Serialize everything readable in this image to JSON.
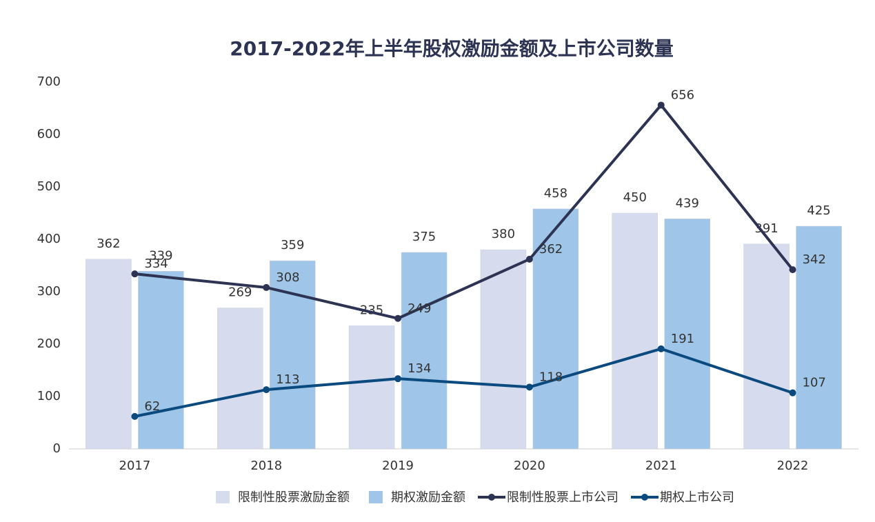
{
  "chart_data": {
    "type": "bar",
    "title": "2017-2022年上半年股权激励金额及上市公司数量",
    "categories": [
      "2017",
      "2018",
      "2019",
      "2020",
      "2021",
      "2022"
    ],
    "series": [
      {
        "name": "限制性股票激励金额",
        "type": "bar",
        "color": "#d6dcee",
        "values": [
          362,
          269,
          235,
          380,
          450,
          391
        ]
      },
      {
        "name": "期权激励金额",
        "type": "bar",
        "color": "#9fc5e8",
        "values": [
          339,
          359,
          375,
          458,
          439,
          425
        ]
      },
      {
        "name": "限制性股票上市公司",
        "type": "line",
        "color": "#2d3352",
        "values": [
          334,
          308,
          249,
          362,
          656,
          342
        ]
      },
      {
        "name": "期权上市公司",
        "type": "line",
        "color": "#0b4a7f",
        "values": [
          62,
          113,
          134,
          118,
          191,
          107
        ]
      }
    ],
    "ylim": [
      0,
      700
    ],
    "yticks": [
      0,
      100,
      200,
      300,
      400,
      500,
      600,
      700
    ],
    "grid": false,
    "legend": "bottom"
  }
}
